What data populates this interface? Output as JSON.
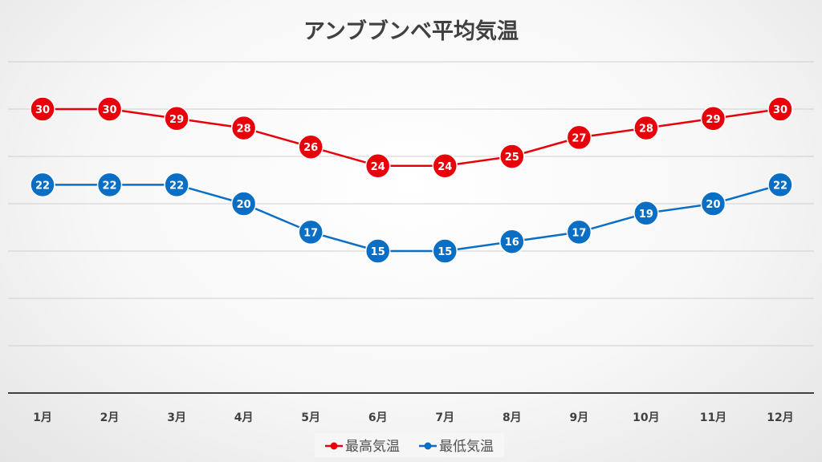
{
  "chart_data": {
    "type": "line",
    "title": "アンブブンベ平均気温",
    "categories": [
      "1月",
      "2月",
      "3月",
      "4月",
      "5月",
      "6月",
      "7月",
      "8月",
      "9月",
      "10月",
      "11月",
      "12月"
    ],
    "series": [
      {
        "name": "最高気温",
        "color": "#e8000b",
        "values": [
          30,
          30,
          29,
          28,
          26,
          24,
          24,
          25,
          27,
          28,
          29,
          30
        ]
      },
      {
        "name": "最低気温",
        "color": "#0a6fc4",
        "values": [
          22,
          22,
          22,
          20,
          17,
          15,
          15,
          16,
          17,
          19,
          20,
          22
        ]
      }
    ],
    "ylim": [
      0,
      35
    ],
    "ytick_step": 5,
    "y_tick_labels_shown": false,
    "grid": true,
    "data_labels": true,
    "legend": "bottom"
  }
}
